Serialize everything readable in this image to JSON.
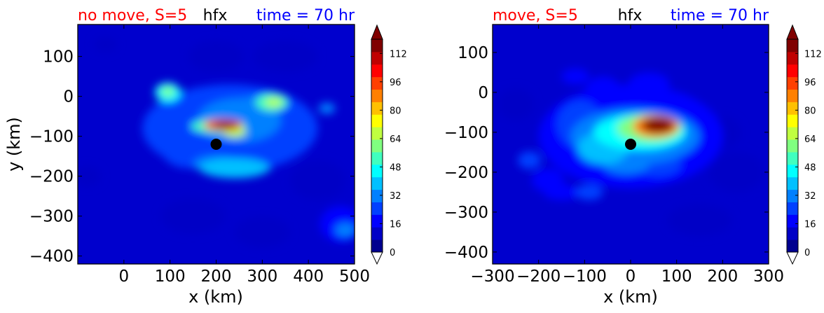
{
  "colors": {
    "left_title": "#ff0000",
    "center_title": "#000000",
    "right_title": "#0000ff",
    "background_field": "#0000cd",
    "storm_center": "#000000"
  },
  "colormap": [
    "#00008f",
    "#0000c6",
    "#0000ff",
    "#0040ff",
    "#0080ff",
    "#00c0ff",
    "#00ffff",
    "#40ffbf",
    "#80ff80",
    "#c0ff40",
    "#ffff00",
    "#ffc000",
    "#ff8000",
    "#ff4000",
    "#ff0000",
    "#c00000",
    "#800000"
  ],
  "chart_data": [
    {
      "type": "heatmap",
      "title_left": "no move, S=5",
      "title_center": "hfx",
      "title_right": "time = 70 hr",
      "xlabel": "x (km)",
      "ylabel": "y (km)",
      "xlim": [
        -100,
        500
      ],
      "ylim": [
        -420,
        180
      ],
      "xticks": [
        0,
        100,
        200,
        300,
        400,
        500
      ],
      "xtick_labels": [
        "0",
        "100",
        "200",
        "300",
        "400",
        "500"
      ],
      "yticks": [
        100,
        0,
        -100,
        -200,
        -300,
        -400
      ],
      "ytick_labels": [
        "100",
        "0",
        "−100",
        "−200",
        "−300",
        "−400"
      ],
      "storm_center": {
        "x": 200,
        "y": -120
      },
      "colorbar": {
        "min": 0,
        "max": 120,
        "ticks": [
          0,
          16,
          32,
          48,
          64,
          80,
          96,
          112
        ],
        "tick_labels": [
          "0",
          "16",
          "32",
          "48",
          "64",
          "80",
          "96",
          "112"
        ],
        "extend": "both"
      },
      "blobs": [
        {
          "x": 230,
          "y": -80,
          "rx": 190,
          "ry": 110,
          "v": 22
        },
        {
          "x": 250,
          "y": -60,
          "rx": 90,
          "ry": 55,
          "v": 30
        },
        {
          "x": 205,
          "y": -75,
          "rx": 60,
          "ry": 18,
          "v": 55
        },
        {
          "x": 215,
          "y": -72,
          "rx": 42,
          "ry": 14,
          "v": 95
        },
        {
          "x": 220,
          "y": -72,
          "rx": 28,
          "ry": 9,
          "v": 120
        },
        {
          "x": 240,
          "y": -90,
          "rx": 25,
          "ry": 12,
          "v": 70
        },
        {
          "x": 320,
          "y": -15,
          "rx": 35,
          "ry": 22,
          "v": 50
        },
        {
          "x": 325,
          "y": -15,
          "rx": 18,
          "ry": 10,
          "v": 68
        },
        {
          "x": 95,
          "y": 10,
          "rx": 28,
          "ry": 24,
          "v": 45
        },
        {
          "x": 95,
          "y": 12,
          "rx": 14,
          "ry": 12,
          "v": 62
        },
        {
          "x": 240,
          "y": -180,
          "rx": 75,
          "ry": 25,
          "v": 38
        },
        {
          "x": 200,
          "y": -170,
          "rx": 50,
          "ry": 22,
          "v": 32
        },
        {
          "x": 140,
          "y": -130,
          "rx": 60,
          "ry": 50,
          "v": 26
        },
        {
          "x": 300,
          "y": -130,
          "rx": 40,
          "ry": 60,
          "v": 28
        },
        {
          "x": 280,
          "y": -40,
          "rx": 50,
          "ry": 40,
          "v": 30
        },
        {
          "x": 440,
          "y": -30,
          "rx": 18,
          "ry": 14,
          "v": 30
        },
        {
          "x": 480,
          "y": -335,
          "rx": 22,
          "ry": 18,
          "v": 34
        },
        {
          "x": 470,
          "y": -320,
          "rx": 45,
          "ry": 45,
          "v": 16
        },
        {
          "x": 420,
          "y": -210,
          "rx": 60,
          "ry": 50,
          "v": 12
        },
        {
          "x": -80,
          "y": -200,
          "rx": 30,
          "ry": 25,
          "v": 12
        },
        {
          "x": 150,
          "y": -300,
          "rx": 70,
          "ry": 45,
          "v": 10
        },
        {
          "x": 300,
          "y": -340,
          "rx": 60,
          "ry": 40,
          "v": 10
        },
        {
          "x": 350,
          "y": 100,
          "rx": 70,
          "ry": 40,
          "v": 10
        },
        {
          "x": 200,
          "y": 100,
          "rx": 60,
          "ry": 40,
          "v": 8
        },
        {
          "x": -40,
          "y": 130,
          "rx": 25,
          "ry": 20,
          "v": 10
        }
      ]
    },
    {
      "type": "heatmap",
      "title_left": "move, S=5",
      "title_center": "hfx",
      "title_right": "time = 70 hr",
      "xlabel": "x (km)",
      "ylabel": "",
      "xlim": [
        -300,
        300
      ],
      "ylim": [
        -430,
        170
      ],
      "xticks": [
        -300,
        -200,
        -100,
        0,
        100,
        200,
        300
      ],
      "xtick_labels": [
        "−300",
        "−200",
        "−100",
        "0",
        "100",
        "200",
        "300"
      ],
      "yticks": [
        100,
        0,
        -100,
        -200,
        -300,
        -400
      ],
      "ytick_labels": [
        "100",
        "0",
        "−100",
        "−200",
        "−300",
        "−400"
      ],
      "storm_center": {
        "x": 0,
        "y": -130
      },
      "colorbar": {
        "min": 0,
        "max": 120,
        "ticks": [
          0,
          16,
          32,
          48,
          64,
          80,
          96,
          112
        ],
        "tick_labels": [
          "0",
          "16",
          "32",
          "48",
          "64",
          "80",
          "96",
          "112"
        ],
        "extend": "both"
      },
      "blobs": [
        {
          "x": 0,
          "y": -110,
          "rx": 200,
          "ry": 130,
          "v": 20
        },
        {
          "x": 10,
          "y": -110,
          "rx": 140,
          "ry": 70,
          "v": 30
        },
        {
          "x": 20,
          "y": -100,
          "rx": 100,
          "ry": 45,
          "v": 45
        },
        {
          "x": 40,
          "y": -90,
          "rx": 70,
          "ry": 35,
          "v": 62
        },
        {
          "x": 55,
          "y": -85,
          "rx": 50,
          "ry": 28,
          "v": 85
        },
        {
          "x": 60,
          "y": -82,
          "rx": 35,
          "ry": 20,
          "v": 120
        },
        {
          "x": -60,
          "y": -140,
          "rx": 55,
          "ry": 40,
          "v": 40
        },
        {
          "x": -10,
          "y": -180,
          "rx": 50,
          "ry": 25,
          "v": 30
        },
        {
          "x": 60,
          "y": -180,
          "rx": 50,
          "ry": 30,
          "v": 28
        },
        {
          "x": -110,
          "y": -80,
          "rx": 50,
          "ry": 60,
          "v": 24
        },
        {
          "x": -120,
          "y": 40,
          "rx": 30,
          "ry": 20,
          "v": 20
        },
        {
          "x": -60,
          "y": 0,
          "rx": 40,
          "ry": 40,
          "v": 20
        },
        {
          "x": 40,
          "y": 20,
          "rx": 45,
          "ry": 30,
          "v": 18
        },
        {
          "x": -220,
          "y": -170,
          "rx": 25,
          "ry": 22,
          "v": 26
        },
        {
          "x": -180,
          "y": -220,
          "rx": 35,
          "ry": 30,
          "v": 16
        },
        {
          "x": -90,
          "y": -250,
          "rx": 30,
          "ry": 20,
          "v": 26
        },
        {
          "x": -150,
          "y": -250,
          "rx": 40,
          "ry": 20,
          "v": 18
        },
        {
          "x": 230,
          "y": -200,
          "rx": 60,
          "ry": 50,
          "v": 10
        },
        {
          "x": 200,
          "y": -100,
          "rx": 40,
          "ry": 40,
          "v": 10
        },
        {
          "x": 150,
          "y": -320,
          "rx": 70,
          "ry": 40,
          "v": 8
        },
        {
          "x": -250,
          "y": -30,
          "rx": 40,
          "ry": 40,
          "v": 8
        }
      ]
    }
  ]
}
